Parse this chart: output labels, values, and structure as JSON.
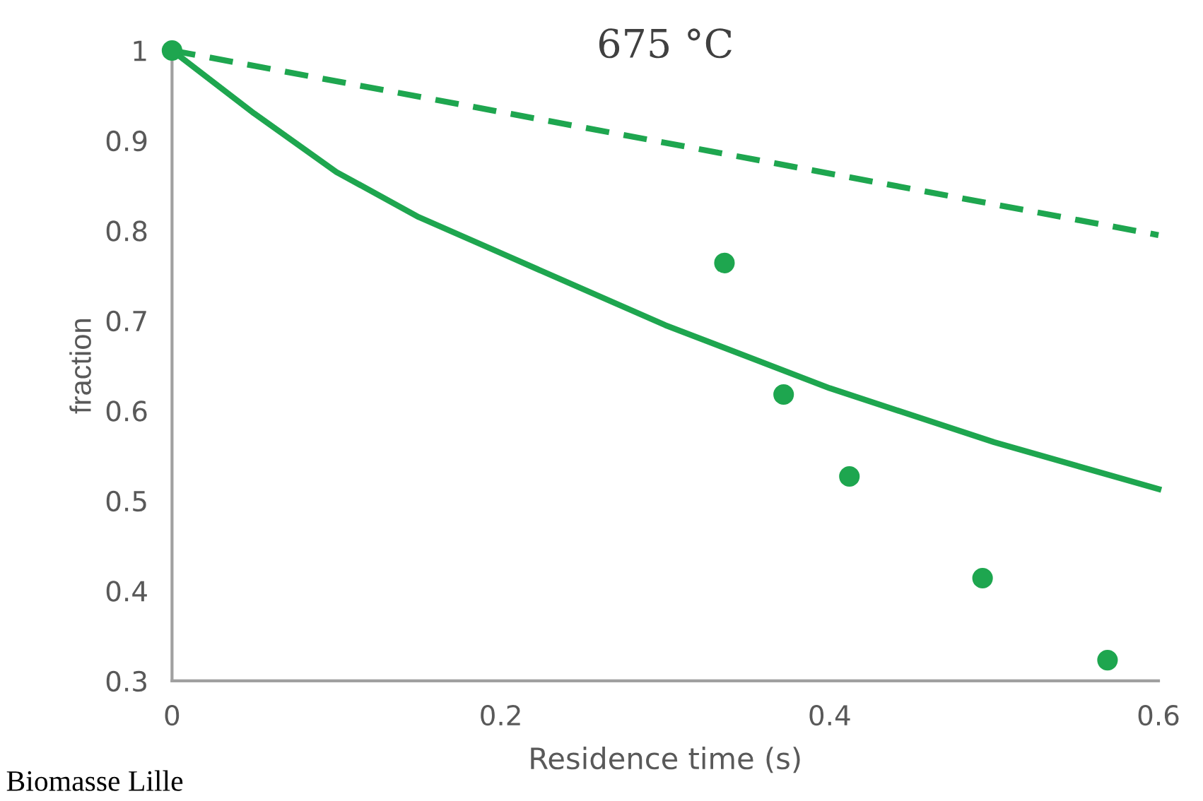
{
  "chart_data": {
    "type": "scatter",
    "title": "675 °C",
    "xlabel": "Residence time (s)",
    "ylabel": "fraction",
    "xlim": [
      0,
      0.6
    ],
    "ylim": [
      0.3,
      1.0
    ],
    "xticks": [
      0,
      0.2,
      0.4,
      0.6
    ],
    "yticks": [
      0.3,
      0.4,
      0.5,
      0.6,
      0.7,
      0.8,
      0.9,
      1
    ],
    "grid": false,
    "legend": false,
    "marker": "circle",
    "annotations": [
      "Biomasse Lille"
    ],
    "series": [
      {
        "color": "#1ea64f",
        "x": [
          0,
          0.336,
          0.372,
          0.412,
          0.493,
          0.569
        ],
        "values": [
          1.0,
          0.764,
          0.618,
          0.527,
          0.414,
          0.323
        ]
      },
      {
        "type": "line",
        "color": "#1ea64f",
        "line_style": "solid",
        "marker": "none",
        "x": [
          0,
          0.05,
          0.1,
          0.15,
          0.2,
          0.3,
          0.4,
          0.5,
          0.6
        ],
        "values": [
          1.0,
          0.93,
          0.865,
          0.815,
          0.775,
          0.695,
          0.625,
          0.565,
          0.513
        ]
      },
      {
        "type": "line",
        "color": "#1ea64f",
        "line_style": "dashed",
        "marker": "none",
        "x": [
          0,
          0.6
        ],
        "values": [
          1.0,
          0.795
        ]
      }
    ]
  }
}
